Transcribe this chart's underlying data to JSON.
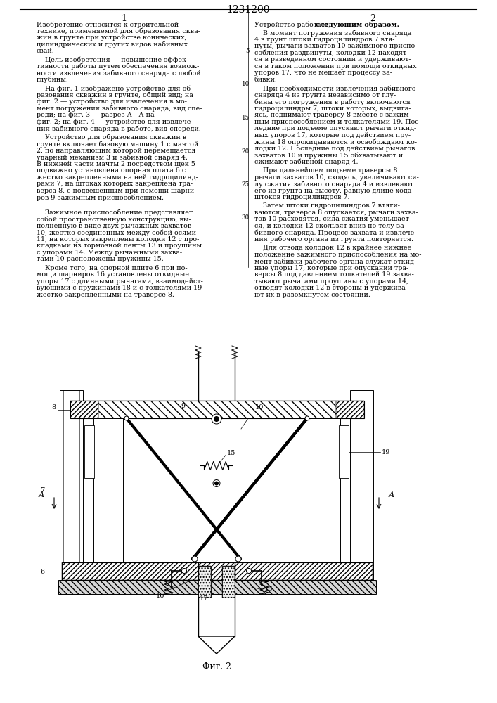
{
  "title": "1231200",
  "col1_header": "1",
  "col2_header": "2",
  "background_color": "#ffffff",
  "font_size_body": 6.8,
  "font_size_header": 9,
  "col1_paragraphs": [
    "Изобретение относится к строительной\nтехнике, применяемой для образования сква-\nжин в грунте при устройстве конических,\nцилиндрических и других видов набивных\nсвай.",
    "    Цель изобретения — повышение эффек-\nтивности работы путем обеспечения возмож-\nности извлечения забивного снаряда с любой\nглубины.",
    "    На фиг. 1 изображено устройство для об-\nразования скважин в грунте, общий вид; на\nфиг. 2 — устройство для извлечения в мо-\nмент погружения забивного снаряда, вид спе-\nреди; на фиг. 3 — разрез А—А на\nфиг. 2; на фиг. 4 — устройство для извлече-\nния забивного снаряда в работе, вид спереди.",
    "    Устройство для образования скважин в\nгрунте включает базовую машину 1 с мачтой\n2, по направляющим которой перемещается\nударный механизм 3 и забивной снаряд 4.\nВ нижней части мачты 2 посредством щек 5\nподвижно установлена опорная плита 6 с\nжестко закрепленными на ней гидроцилинд-\nрами 7, на штоках которых закреплена тра-\nверса 8, с подвешенным при помощи шарни-\nров 9 зажимным приспособлением.",
    "\n    Зажимное приспособление представляет\nсобой пространственную конструкцию, вы-\nполненную в виде двух рычажных захватов\n10, жестко соединенных между собой осями\n11, на которых закреплены колодки 12 с про-\nкладками из тормозной ленты 13 и проушины\nс упорами 14. Между рычажными захва-\nтами 10 расположены пружины 15.",
    "    Кроме того, на опорной плите 6 при по-\nмощи шарниров 16 установлены откидные\nупоры 17 с длинными рычагами, взаимодейст-\nвующими с пружинами 18 и с толкателями 19\nжестко закрепленными на траверсе 8."
  ],
  "col2_paragraphs": [
    "    В момент погружения забивного снаряда\n4 в грунт штоки гидроцилиндров 7 втя-\nнуты, рычаги захватов 10 зажимного приспо-\nсобления раздвинуты, колодки 12 находят-\nся в разведенном состоянии и удерживают-\nся в таком положении при помощи откидных\nупоров 17, что не мешает процессу за-\nбивки.",
    "    При необходимости извлечения забивного\nснаряда 4 из грунта независимо от глу-\nбины его погружения в работу включаются\nгидроцилиндры 7, штоки которых, выдвига-\nясь, поднимают траверсу 8 вместе с зажим-\nным приспособлением и толкателями 19. Пос-\nледние при подъеме опускают рычаги откид-\nных упоров 17, которые под действием пру-\nжины 18 опрокидываются и освобождают ко-\nлодки 12. Последние под действием рычагов\nзахватов 10 и пружины 15 обхватывают и\nсжимают забивной снаряд 4.",
    "    При дальнейшем подъеме траверсы 8\nрычаги захватов 10, сходясь, увеличивают си-\nлу сжатия забивного снаряда 4 и извлекают\nего из грунта на высоту, равную длине хода\nштоков гидроцилиндров 7.",
    "    Затем штоки гидроцилиндров 7 втяги-\nваются, траверса 8 опускается, рычаги захва-\nтов 10 расходятся, сила сжатия уменьшает-\nся, и колодки 12 скользят вниз по телу за-\nбивного снаряда. Процесс захвата и извлече-\nния рабочего органа из грунта повторяется.",
    "    Для отвода колодок 12 в крайнее нижнее\nположение зажимного приспособления на мо-\nмент забивки рабочего органа служат откид-\nные упоры 17, которые при опускании тра-\nверсы 8 под давлением толкателей 19 захва-\nтывают рычагами проушины с упорами 14,\nотводят колодки 12 в стороны и удержива-\nют их в разомкнутом состоянии."
  ],
  "line_numbers": [
    5,
    10,
    15,
    20,
    25,
    30
  ],
  "fig_caption": "Фиг. 2"
}
